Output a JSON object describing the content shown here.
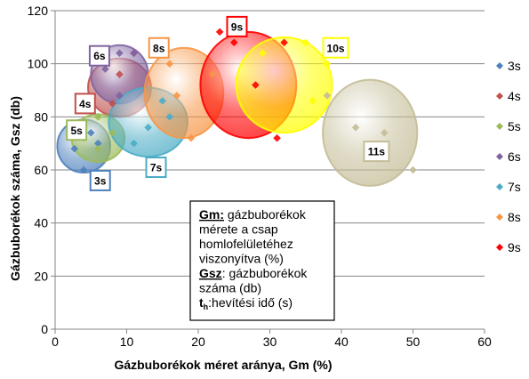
{
  "chart_data": {
    "type": "bubble",
    "xlabel": "Gázbuborékok méret aránya, Gm (%)",
    "ylabel": "Gázbuborékok száma, Gsz (db)",
    "xlim": [
      0,
      60
    ],
    "ylim": [
      0,
      120
    ],
    "x_ticks": [
      "0",
      "10",
      "20",
      "30",
      "40",
      "50",
      "60"
    ],
    "y_ticks": [
      "0",
      "20",
      "40",
      "60",
      "80",
      "100",
      "120"
    ],
    "grid": "horizontal major",
    "legend_position": "right",
    "legend": [
      "3s",
      "4s",
      "5s",
      "6s",
      "7s",
      "8s",
      "9s"
    ],
    "bubbles": [
      {
        "label": "3s",
        "color": "#4F81BD",
        "cx": 4,
        "cy": 69,
        "rx": 3.7,
        "ry": 10,
        "points": [
          [
            2.7,
            68
          ],
          [
            4,
            60
          ],
          [
            5,
            74
          ],
          [
            6,
            70
          ]
        ]
      },
      {
        "label": "4s",
        "color": "#C0504D",
        "cx": 9,
        "cy": 91,
        "rx": 4.4,
        "ry": 11,
        "points": [
          [
            7,
            100
          ],
          [
            9,
            96
          ],
          [
            11,
            104
          ],
          [
            8,
            85
          ]
        ]
      },
      {
        "label": "5s",
        "color": "#9BBB59",
        "cx": 6,
        "cy": 72,
        "rx": 3.7,
        "ry": 9,
        "points": [
          [
            4,
            72
          ],
          [
            6,
            80
          ],
          [
            6,
            68
          ],
          [
            8,
            74
          ]
        ]
      },
      {
        "label": "6s",
        "color": "#8064A2",
        "cx": 9,
        "cy": 96,
        "rx": 4,
        "ry": 11,
        "points": [
          [
            7,
            98
          ],
          [
            9,
            104
          ],
          [
            11,
            104
          ],
          [
            9,
            88
          ]
        ]
      },
      {
        "label": "7s",
        "color": "#4BACC6",
        "cx": 13,
        "cy": 78,
        "rx": 5.5,
        "ry": 13,
        "points": [
          [
            13,
            76
          ],
          [
            15,
            86
          ],
          [
            11,
            70
          ],
          [
            16,
            80
          ]
        ]
      },
      {
        "label": "8s",
        "color": "#F79646",
        "cx": 18,
        "cy": 89,
        "rx": 5.5,
        "ry": 17,
        "points": [
          [
            16,
            100
          ],
          [
            19,
            72
          ],
          [
            22,
            96
          ],
          [
            17,
            88
          ]
        ]
      },
      {
        "label": "9s",
        "color": "#FF0000",
        "cx": 27,
        "cy": 92,
        "rx": 6.7,
        "ry": 20,
        "points": [
          [
            23,
            112
          ],
          [
            25,
            108
          ],
          [
            32,
            108
          ],
          [
            31,
            72
          ],
          [
            28,
            92
          ]
        ]
      },
      {
        "label": "10s",
        "color": "#FFFF00",
        "cx": 32,
        "cy": 92,
        "rx": 6.7,
        "ry": 18,
        "points": [
          [
            29,
            104
          ],
          [
            35,
            108
          ],
          [
            38,
            100
          ],
          [
            36,
            86
          ]
        ]
      },
      {
        "label": "11s",
        "color": "#C4BD97",
        "cx": 44,
        "cy": 74,
        "rx": 6.6,
        "ry": 20,
        "points": [
          [
            42,
            76
          ],
          [
            38,
            88
          ],
          [
            50,
            60
          ],
          [
            46,
            74
          ]
        ]
      }
    ],
    "callouts": [
      {
        "text": "3s",
        "color": "#4F81BD",
        "x": 6.3,
        "y": 56
      },
      {
        "text": "4s",
        "color": "#C0504D",
        "x": 4.2,
        "y": 85
      },
      {
        "text": "5s",
        "color": "#9BBB59",
        "x": 3.0,
        "y": 75
      },
      {
        "text": "6s",
        "color": "#8064A2",
        "x": 6.2,
        "y": 103
      },
      {
        "text": "7s",
        "color": "#4BACC6",
        "x": 14.1,
        "y": 61
      },
      {
        "text": "8s",
        "color": "#F79646",
        "x": 14.5,
        "y": 106
      },
      {
        "text": "9s",
        "color": "#FF0000",
        "x": 25.4,
        "y": 114
      },
      {
        "text": "10s",
        "color": "#FFFF00",
        "x": 39.2,
        "y": 106
      },
      {
        "text": "11s",
        "color": "#C4BD97",
        "x": 44.9,
        "y": 67
      }
    ],
    "note": [
      {
        "bold": "Gm:",
        "text": " gázbuborékok"
      },
      {
        "bold": "",
        "text": "mérete a csap"
      },
      {
        "bold": "",
        "text": "homlofelületéhez"
      },
      {
        "bold": "",
        "text": "viszonyítva (%)"
      },
      {
        "bold": "Gsz",
        "text": ": gázbuborékok"
      },
      {
        "bold": "",
        "text": "száma (db)"
      },
      {
        "bold": "t",
        "sub": "h",
        "text": ":hevítési idő (s)"
      }
    ]
  }
}
